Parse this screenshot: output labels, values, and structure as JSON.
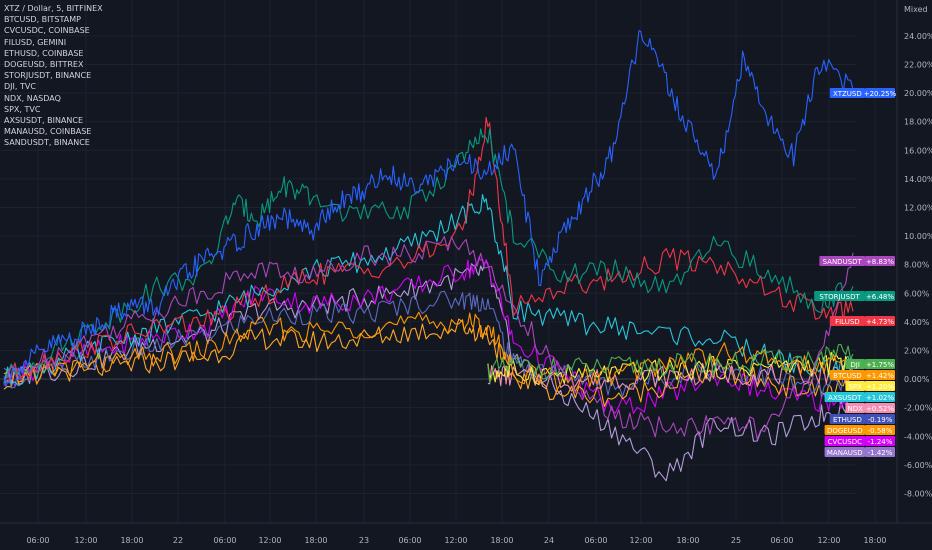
{
  "chart_data": {
    "type": "line",
    "title": "XTZ / Dollar, 5, BITFINEX",
    "scale_mode": "Mixed",
    "legend": [
      "XTZ / Dollar, 5, BITFINEX",
      "BTCUSD, BITSTAMP",
      "CVCUSDC, COINBASE",
      "FILUSD, GEMINI",
      "ETHUSD, COINBASE",
      "DOGEUSD, BITTREX",
      "STORJUSDT, BINANCE",
      "DJI, TVC",
      "NDX, NASDAQ",
      "SPX, TVC",
      "AXSUSDT, BINANCE",
      "MANAUSD, COINBASE",
      "SANDUSDT, BINANCE"
    ],
    "x_ticks": [
      "06:00",
      "12:00",
      "18:00",
      "22",
      "06:00",
      "12:00",
      "18:00",
      "23",
      "06:00",
      "12:00",
      "18:00",
      "24",
      "06:00",
      "12:00",
      "18:00",
      "25",
      "06:00",
      "12:00",
      "18:00"
    ],
    "y_ticks": [
      "24.00%",
      "22.00%",
      "20.00%",
      "18.00%",
      "16.00%",
      "14.00%",
      "12.00%",
      "10.00%",
      "8.00%",
      "6.00%",
      "4.00%",
      "2.00%",
      "0.00%",
      "-2.00%",
      "-4.00%",
      "-6.00%",
      "-8.00%"
    ],
    "ylim": [
      -9.0,
      25.5
    ],
    "grid": true,
    "series": [
      {
        "name": "XTZUSD",
        "label": "XTZUSD",
        "change": "+20.25%",
        "color": "#2962ff",
        "label_color": "#2962ff",
        "last": 20.25,
        "x": [
          0,
          3,
          6,
          9,
          12,
          15,
          18,
          21,
          24,
          27,
          30,
          33,
          36,
          39,
          42,
          45,
          48,
          51,
          54,
          57,
          60,
          63,
          66,
          69,
          72,
          75,
          78,
          81,
          84,
          87,
          90,
          93,
          96,
          100
        ],
        "y": [
          0.0,
          1.3,
          2.5,
          3.1,
          4.3,
          5.2,
          5.0,
          7.1,
          8.6,
          9.4,
          10.6,
          11.3,
          10.2,
          12.1,
          13.1,
          14.4,
          13.6,
          14.3,
          15.2,
          14.4,
          16.2,
          7.1,
          10.4,
          13.2,
          16.1,
          24.6,
          20.7,
          17.2,
          14.2,
          22.2,
          18.2,
          15.6,
          22.1,
          20.25
        ]
      },
      {
        "name": "SANDUSDT",
        "label": "SANDUSDT",
        "change": "+8.83%",
        "color": "#ab47bc",
        "label_color": "#ab47bc",
        "last": 8.83,
        "x": [
          0,
          6,
          12,
          18,
          24,
          30,
          36,
          42,
          48,
          54,
          60,
          66,
          72,
          78,
          84,
          90,
          96,
          100
        ],
        "y": [
          0.0,
          1.8,
          3.3,
          4.8,
          6.2,
          7.8,
          7.1,
          8.8,
          8.6,
          9.9,
          5.2,
          -0.2,
          -2.7,
          -3.5,
          -3.1,
          -3.5,
          1.1,
          8.83
        ]
      },
      {
        "name": "STORJUSDT",
        "label": "STORJUSDT",
        "change": "+6.48%",
        "color": "#089981",
        "label_color": "#089981",
        "last": 6.48,
        "x": [
          0,
          6,
          12,
          18,
          24,
          27,
          30,
          33,
          36,
          42,
          48,
          54,
          57,
          60,
          66,
          72,
          78,
          84,
          90,
          96,
          100
        ],
        "y": [
          0.0,
          2.2,
          4.1,
          6.4,
          7.5,
          12.3,
          11.4,
          13.6,
          12.6,
          11.4,
          12.0,
          15.4,
          17.3,
          10.1,
          7.3,
          7.6,
          6.1,
          9.5,
          7.3,
          5.3,
          6.48
        ]
      },
      {
        "name": "FILUSD",
        "label": "FILUSD",
        "change": "+4.73%",
        "color": "#f23645",
        "label_color": "#f23645",
        "last": 4.73,
        "x": [
          0,
          6,
          12,
          18,
          24,
          30,
          36,
          42,
          48,
          54,
          57,
          60,
          66,
          72,
          78,
          84,
          90,
          96,
          100
        ],
        "y": [
          0.0,
          1.6,
          2.6,
          3.6,
          4.1,
          5.6,
          7.3,
          7.6,
          8.3,
          10.3,
          18.1,
          5.1,
          6.5,
          7.1,
          8.4,
          8.1,
          6.2,
          4.6,
          4.73
        ]
      },
      {
        "name": "DJI",
        "label": "DJI",
        "change": "+1.75%",
        "color": "#4caf50",
        "label_color": "#4caf50",
        "last": 1.75,
        "x": [
          57,
          60,
          66,
          72,
          78,
          84,
          90,
          96,
          100
        ],
        "y": [
          0.5,
          0.9,
          0.7,
          0.8,
          1.0,
          1.1,
          1.2,
          1.5,
          1.75
        ]
      },
      {
        "name": "BTCUSD",
        "label": "BTCUSD",
        "change": "+1.42%",
        "color": "#ff9800",
        "label_color": "#ff9800",
        "last": 1.42,
        "x": [
          0,
          6,
          12,
          18,
          24,
          30,
          36,
          42,
          48,
          54,
          57,
          60,
          66,
          72,
          78,
          84,
          90,
          96,
          100
        ],
        "y": [
          0.0,
          0.6,
          1.1,
          1.6,
          2.1,
          3.6,
          3.3,
          3.6,
          3.9,
          4.0,
          3.6,
          0.6,
          -0.2,
          0.3,
          1.1,
          1.9,
          1.4,
          0.7,
          1.42
        ]
      },
      {
        "name": "SPX",
        "label": "SPX",
        "change": "+1.20%",
        "color": "#ffeb3b",
        "label_color": "#ffeb3b",
        "last": 1.2,
        "x": [
          57,
          60,
          66,
          72,
          78,
          84,
          90,
          96,
          100
        ],
        "y": [
          0.4,
          0.5,
          0.3,
          0.4,
          0.6,
          0.8,
          0.9,
          1.0,
          1.2
        ]
      },
      {
        "name": "AXSUSDT",
        "label": "AXSUSDT",
        "change": "+1.02%",
        "color": "#26c6da",
        "label_color": "#26c6da",
        "last": 1.02,
        "x": [
          0,
          6,
          12,
          18,
          24,
          30,
          36,
          42,
          48,
          54,
          57,
          60,
          66,
          72,
          78,
          84,
          90,
          96,
          100
        ],
        "y": [
          0.0,
          1.1,
          2.4,
          3.5,
          4.6,
          6.1,
          7.6,
          8.2,
          9.4,
          11.4,
          12.4,
          5.0,
          4.1,
          3.6,
          3.2,
          2.8,
          1.6,
          0.6,
          1.02
        ]
      },
      {
        "name": "NDX",
        "label": "NDX",
        "change": "+0.52%",
        "color": "#f48fb1",
        "label_color": "#f48fb1",
        "last": 0.52,
        "x": [
          57,
          60,
          66,
          72,
          78,
          84,
          90,
          96,
          100
        ],
        "y": [
          0.3,
          0.2,
          -0.1,
          0.0,
          0.2,
          0.4,
          0.3,
          0.4,
          0.52
        ]
      },
      {
        "name": "ETHUSD",
        "label": "ETHUSD",
        "change": "-0.19%",
        "color": "#5c6bc0",
        "label_color": "#3f51b5",
        "last": -0.19,
        "x": [
          0,
          6,
          12,
          18,
          24,
          30,
          36,
          42,
          48,
          54,
          57,
          60,
          66,
          72,
          78,
          84,
          90,
          96,
          100
        ],
        "y": [
          0.0,
          0.9,
          1.6,
          2.4,
          3.2,
          4.3,
          4.6,
          4.5,
          5.3,
          5.6,
          5.4,
          1.0,
          0.5,
          -0.6,
          0.2,
          0.8,
          0.2,
          -0.8,
          -0.19
        ]
      },
      {
        "name": "DOGEUSD",
        "label": "DOGEUSD",
        "change": "-0.58%",
        "color": "#ffa726",
        "label_color": "#ff9800",
        "last": -0.58,
        "x": [
          0,
          6,
          12,
          18,
          24,
          30,
          36,
          42,
          48,
          54,
          57,
          60,
          66,
          72,
          78,
          84,
          90,
          96,
          100
        ],
        "y": [
          0.0,
          0.5,
          0.8,
          1.2,
          1.6,
          2.9,
          2.6,
          2.8,
          3.3,
          3.6,
          3.2,
          0.2,
          -1.0,
          -1.2,
          -0.4,
          0.6,
          -0.2,
          -0.9,
          -0.58
        ]
      },
      {
        "name": "CVCUSDC",
        "label": "CVCUSDC",
        "change": "-1.24%",
        "color": "#d500f9",
        "label_color": "#d500f9",
        "last": -1.24,
        "x": [
          0,
          6,
          12,
          18,
          24,
          30,
          36,
          42,
          48,
          54,
          57,
          60,
          66,
          72,
          78,
          84,
          90,
          96,
          100
        ],
        "y": [
          0.0,
          1.2,
          2.1,
          3.0,
          3.7,
          6.1,
          5.2,
          5.6,
          6.4,
          7.6,
          8.1,
          2.6,
          0.4,
          -2.2,
          -1.1,
          0.3,
          -0.9,
          -1.6,
          -1.24
        ]
      },
      {
        "name": "MANAUSD",
        "label": "MANAUSD",
        "change": "-1.42%",
        "color": "#b39ddb",
        "label_color": "#9575cd",
        "last": -1.42,
        "x": [
          0,
          6,
          12,
          18,
          24,
          30,
          36,
          42,
          48,
          54,
          57,
          60,
          66,
          72,
          78,
          84,
          90,
          96,
          100
        ],
        "y": [
          0.0,
          0.6,
          1.5,
          2.6,
          3.1,
          4.9,
          5.1,
          5.6,
          6.3,
          7.2,
          7.6,
          1.6,
          -1.2,
          -3.6,
          -6.8,
          -2.9,
          -4.1,
          -2.6,
          -1.42
        ]
      }
    ]
  }
}
